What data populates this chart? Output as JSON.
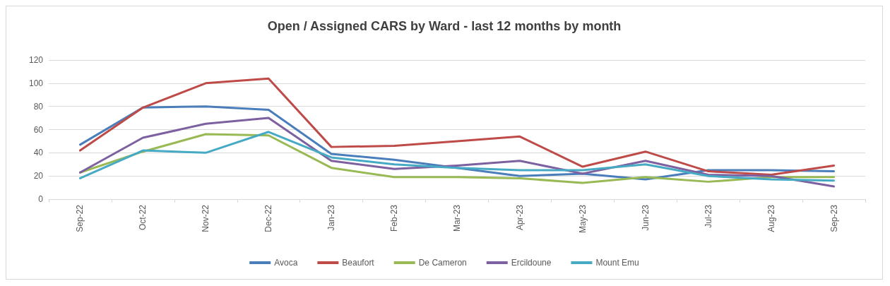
{
  "chart_data": {
    "type": "line",
    "title": "Open / Assigned CARS by Ward - last 12 months by month",
    "categories": [
      "Sep-22",
      "Oct-22",
      "Nov-22",
      "Dec-22",
      "Jan-23",
      "Feb-23",
      "Mar-23",
      "Apr-23",
      "May-23",
      "Jun-23",
      "Jul-23",
      "Aug-23",
      "Sep-23"
    ],
    "series": [
      {
        "name": "Avoca",
        "color": "#4a7ebb",
        "values": [
          47,
          79,
          80,
          77,
          39,
          34,
          27,
          20,
          22,
          17,
          25,
          25,
          24
        ]
      },
      {
        "name": "Beaufort",
        "color": "#be4b48",
        "values": [
          42,
          79,
          100,
          104,
          45,
          46,
          50,
          54,
          28,
          41,
          24,
          21,
          29
        ]
      },
      {
        "name": "De Cameron",
        "color": "#98b954",
        "values": [
          23,
          41,
          56,
          55,
          27,
          19,
          19,
          18,
          14,
          19,
          15,
          19,
          19
        ]
      },
      {
        "name": "Ercildoune",
        "color": "#7d60a0",
        "values": [
          23,
          53,
          65,
          70,
          33,
          26,
          29,
          33,
          22,
          33,
          21,
          20,
          11
        ]
      },
      {
        "name": "Mount Emu",
        "color": "#46aac5",
        "values": [
          18,
          42,
          40,
          58,
          36,
          30,
          27,
          25,
          25,
          30,
          20,
          17,
          16
        ]
      }
    ],
    "ylim": [
      0,
      120
    ],
    "yticks": [
      0,
      20,
      40,
      60,
      80,
      100,
      120
    ],
    "grid": "y",
    "legend": "bottom",
    "marker": "none",
    "line_style": "solid"
  }
}
